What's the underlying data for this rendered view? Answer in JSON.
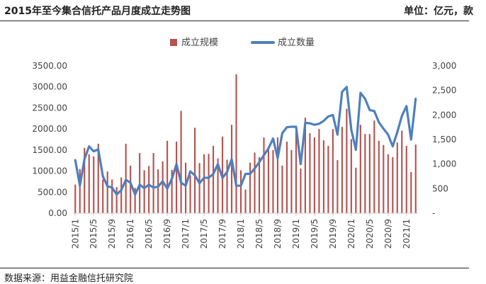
{
  "header": {
    "title": "2015年至今集合信托产品月度成立走势图",
    "unit": "单位：亿元，款"
  },
  "footer": {
    "source": "数据来源：用益金融信托研究院"
  },
  "colors": {
    "bar": "#b5534f",
    "line": "#4f7fbd",
    "axis": "#c8c8c8",
    "text": "#444444"
  },
  "chart_data": {
    "type": "bar+line",
    "title": "2015年至今集合信托产品月度成立走势图",
    "unit_note": "单位：亿元，款",
    "legend": [
      "成立规模",
      "成立数量"
    ],
    "legend_position": "top-center",
    "x": [
      "2015/1",
      "2015/2",
      "2015/3",
      "2015/4",
      "2015/5",
      "2015/6",
      "2015/7",
      "2015/8",
      "2015/9",
      "2015/10",
      "2015/11",
      "2015/12",
      "2016/1",
      "2016/2",
      "2016/3",
      "2016/4",
      "2016/5",
      "2016/6",
      "2016/7",
      "2016/8",
      "2016/9",
      "2016/10",
      "2016/11",
      "2016/12",
      "2017/1",
      "2017/2",
      "2017/3",
      "2017/4",
      "2017/5",
      "2017/6",
      "2017/7",
      "2017/8",
      "2017/9",
      "2017/10",
      "2017/11",
      "2017/12",
      "2018/1",
      "2018/2",
      "2018/3",
      "2018/4",
      "2018/5",
      "2018/6",
      "2018/7",
      "2018/8",
      "2018/9",
      "2018/10",
      "2018/11",
      "2018/12",
      "2019/1",
      "2019/2",
      "2019/3",
      "2019/4",
      "2019/5",
      "2019/6",
      "2019/7",
      "2019/8",
      "2019/9",
      "2019/10",
      "2019/11",
      "2019/12",
      "2020/1",
      "2020/2",
      "2020/3",
      "2020/4",
      "2020/5",
      "2020/6",
      "2020/7",
      "2020/8",
      "2020/9",
      "2020/10",
      "2020/11",
      "2020/12",
      "2021/1",
      "2021/2",
      "2021/3"
    ],
    "x_tick_labels": [
      "2015/1",
      "2015/5",
      "2015/9",
      "2016/1",
      "2016/5",
      "2016/9",
      "2017/1",
      "2017/5",
      "2017/9",
      "2018/1",
      "2018/5",
      "2018/9",
      "2019/1",
      "2019/5",
      "2019/9",
      "2020/1",
      "2020/5",
      "2020/9",
      "2021/1"
    ],
    "series": [
      {
        "name": "成立规模",
        "kind": "bar",
        "axis": "left",
        "values": [
          680,
          1050,
          1550,
          1400,
          1350,
          1650,
          800,
          990,
          800,
          620,
          850,
          1650,
          1130,
          600,
          1430,
          1020,
          1120,
          1430,
          1040,
          1230,
          1720,
          1030,
          1700,
          2430,
          1200,
          900,
          2030,
          1190,
          1400,
          1410,
          1600,
          1300,
          1820,
          1270,
          2100,
          3300,
          1020,
          560,
          1200,
          1440,
          1330,
          1800,
          1500,
          1500,
          1800,
          1130,
          1700,
          1500,
          1930,
          1060,
          2270,
          1900,
          1800,
          2000,
          1730,
          1600,
          2000,
          1260,
          2050,
          2480,
          1760,
          1080,
          2100,
          1880,
          1880,
          2200,
          1720,
          1620,
          1400,
          1330,
          1680,
          1960,
          1600,
          980,
          1630
        ]
      },
      {
        "name": "成立数量",
        "kind": "line",
        "axis": "right",
        "values": [
          1080,
          560,
          1100,
          1360,
          1260,
          1300,
          750,
          550,
          520,
          380,
          470,
          680,
          620,
          380,
          580,
          510,
          580,
          520,
          540,
          650,
          500,
          700,
          1000,
          620,
          560,
          850,
          770,
          610,
          720,
          720,
          800,
          1000,
          720,
          840,
          1100,
          560,
          560,
          800,
          800,
          910,
          1040,
          1180,
          1320,
          1520,
          1120,
          1630,
          1750,
          1760,
          1760,
          1000,
          1840,
          1830,
          1800,
          1820,
          1880,
          1970,
          2000,
          1600,
          2470,
          2570,
          1700,
          1290,
          2450,
          2330,
          2100,
          2080,
          1850,
          1720,
          1600,
          1360,
          1650,
          1980,
          2180,
          1500,
          2330
        ]
      }
    ],
    "y_left": {
      "min": 0,
      "max": 3500,
      "step": 500,
      "tick_labels": [
        "0.00",
        "500.00",
        "1000.00",
        "1500.00",
        "2000.00",
        "2500.00",
        "3000.00",
        "3500.00"
      ]
    },
    "y_right": {
      "min": 0,
      "max": 3000,
      "step": 500,
      "tick_labels": [
        "-",
        "500",
        "1,000",
        "1,500",
        "2,000",
        "2,500",
        "3,000"
      ]
    },
    "grid": false
  }
}
